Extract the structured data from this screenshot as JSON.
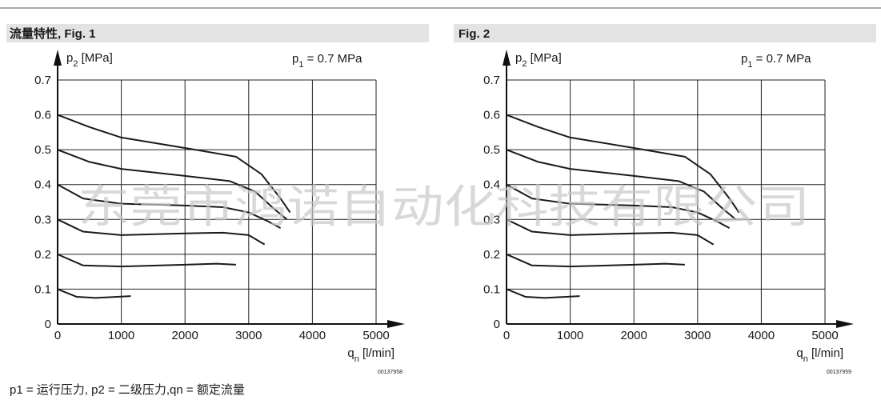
{
  "chart_data": [
    {
      "type": "line",
      "title": "流量特性, Fig. 1",
      "ylabel": [
        "p",
        "2",
        " [MPa]"
      ],
      "annotation": [
        "p",
        "1",
        " = 0.7 MPa"
      ],
      "xlabel": [
        "q",
        "n",
        " [l/min]"
      ],
      "code": "00137958",
      "xlim": [
        0,
        5000
      ],
      "ylim": [
        0,
        0.7
      ],
      "xticks": [
        0,
        1000,
        2000,
        3000,
        4000,
        5000
      ],
      "yticks": [
        0,
        0.1,
        0.2,
        0.3,
        0.4,
        0.5,
        0.6,
        0.7
      ],
      "grid": true,
      "series": [
        {
          "color": "#1a1a1a",
          "x": [
            0,
            500,
            1000,
            2000,
            2800,
            3200,
            3500,
            3650
          ],
          "values": [
            0.6,
            0.565,
            0.535,
            0.505,
            0.48,
            0.43,
            0.36,
            0.32
          ]
        },
        {
          "color": "#1a1a1a",
          "x": [
            0,
            500,
            1000,
            2000,
            2700,
            3100,
            3400,
            3600
          ],
          "values": [
            0.5,
            0.465,
            0.445,
            0.425,
            0.41,
            0.38,
            0.33,
            0.3
          ]
        },
        {
          "color": "#1a1a1a",
          "x": [
            0,
            400,
            1000,
            2000,
            2600,
            3000,
            3300,
            3500
          ],
          "values": [
            0.4,
            0.36,
            0.345,
            0.34,
            0.335,
            0.32,
            0.295,
            0.275
          ]
        },
        {
          "color": "#1a1a1a",
          "x": [
            0,
            400,
            1000,
            2000,
            2600,
            3000,
            3250
          ],
          "values": [
            0.3,
            0.265,
            0.255,
            0.26,
            0.262,
            0.255,
            0.228
          ]
        },
        {
          "color": "#1a1a1a",
          "x": [
            0,
            400,
            1000,
            2000,
            2500,
            2800
          ],
          "values": [
            0.2,
            0.168,
            0.165,
            0.17,
            0.173,
            0.17
          ]
        },
        {
          "color": "#1a1a1a",
          "x": [
            0,
            300,
            600,
            1150
          ],
          "values": [
            0.1,
            0.078,
            0.075,
            0.08
          ]
        }
      ]
    },
    {
      "type": "line",
      "title": "Fig. 2",
      "ylabel": [
        "p",
        "2",
        " [MPa]"
      ],
      "annotation": [
        "p",
        "1",
        " = 0.7 MPa"
      ],
      "xlabel": [
        "q",
        "n",
        " [l/min]"
      ],
      "code": "00137959",
      "xlim": [
        0,
        5000
      ],
      "ylim": [
        0,
        0.7
      ],
      "xticks": [
        0,
        1000,
        2000,
        3000,
        4000,
        5000
      ],
      "yticks": [
        0,
        0.1,
        0.2,
        0.3,
        0.4,
        0.5,
        0.6,
        0.7
      ],
      "grid": true,
      "series": [
        {
          "color": "#1a1a1a",
          "x": [
            0,
            500,
            1000,
            2000,
            2800,
            3200,
            3500,
            3650
          ],
          "values": [
            0.6,
            0.565,
            0.535,
            0.505,
            0.48,
            0.43,
            0.36,
            0.32
          ]
        },
        {
          "color": "#1a1a1a",
          "x": [
            0,
            500,
            1000,
            2000,
            2700,
            3100,
            3400,
            3600
          ],
          "values": [
            0.5,
            0.465,
            0.445,
            0.425,
            0.41,
            0.38,
            0.33,
            0.3
          ]
        },
        {
          "color": "#1a1a1a",
          "x": [
            0,
            400,
            1000,
            2000,
            2600,
            3000,
            3300,
            3500
          ],
          "values": [
            0.4,
            0.36,
            0.345,
            0.34,
            0.335,
            0.32,
            0.295,
            0.275
          ]
        },
        {
          "color": "#1a1a1a",
          "x": [
            0,
            400,
            1000,
            2000,
            2600,
            3000,
            3250
          ],
          "values": [
            0.3,
            0.265,
            0.255,
            0.26,
            0.262,
            0.255,
            0.228
          ]
        },
        {
          "color": "#1a1a1a",
          "x": [
            0,
            400,
            1000,
            2000,
            2500,
            2800
          ],
          "values": [
            0.2,
            0.168,
            0.165,
            0.17,
            0.173,
            0.17
          ]
        },
        {
          "color": "#1a1a1a",
          "x": [
            0,
            300,
            600,
            1150
          ],
          "values": [
            0.1,
            0.078,
            0.075,
            0.08
          ]
        }
      ]
    }
  ],
  "footnote": "p1 = 运行压力, p2 = 二级压力,qn = 额定流量",
  "watermark": "东莞市鸿诺自动化科技有限公司"
}
